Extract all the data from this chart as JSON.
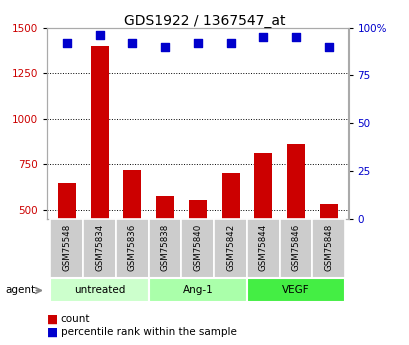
{
  "title": "GDS1922 / 1367547_at",
  "samples": [
    "GSM75548",
    "GSM75834",
    "GSM75836",
    "GSM75838",
    "GSM75840",
    "GSM75842",
    "GSM75844",
    "GSM75846",
    "GSM75848"
  ],
  "counts": [
    650,
    1400,
    720,
    575,
    555,
    700,
    810,
    860,
    530
  ],
  "percentile_ranks": [
    92,
    96,
    92,
    90,
    92,
    92,
    95,
    95,
    90
  ],
  "groups": [
    {
      "label": "untreated",
      "indices": [
        0,
        1,
        2
      ],
      "color": "#ccffcc"
    },
    {
      "label": "Ang-1",
      "indices": [
        3,
        4,
        5
      ],
      "color": "#aaffaa"
    },
    {
      "label": "VEGF",
      "indices": [
        6,
        7,
        8
      ],
      "color": "#44ee44"
    }
  ],
  "ylim_left": [
    450,
    1500
  ],
  "ylim_right": [
    0,
    100
  ],
  "yticks_left": [
    500,
    750,
    1000,
    1250,
    1500
  ],
  "yticks_right": [
    0,
    25,
    50,
    75,
    100
  ],
  "bar_color": "#cc0000",
  "dot_color": "#0000cc",
  "bar_bottom": 450,
  "grid_color": "#000000",
  "bg_color": "#ffffff",
  "plot_bg": "#ffffff",
  "sample_box_color": "#cccccc",
  "legend_count_color": "#cc0000",
  "legend_pct_color": "#0000cc"
}
